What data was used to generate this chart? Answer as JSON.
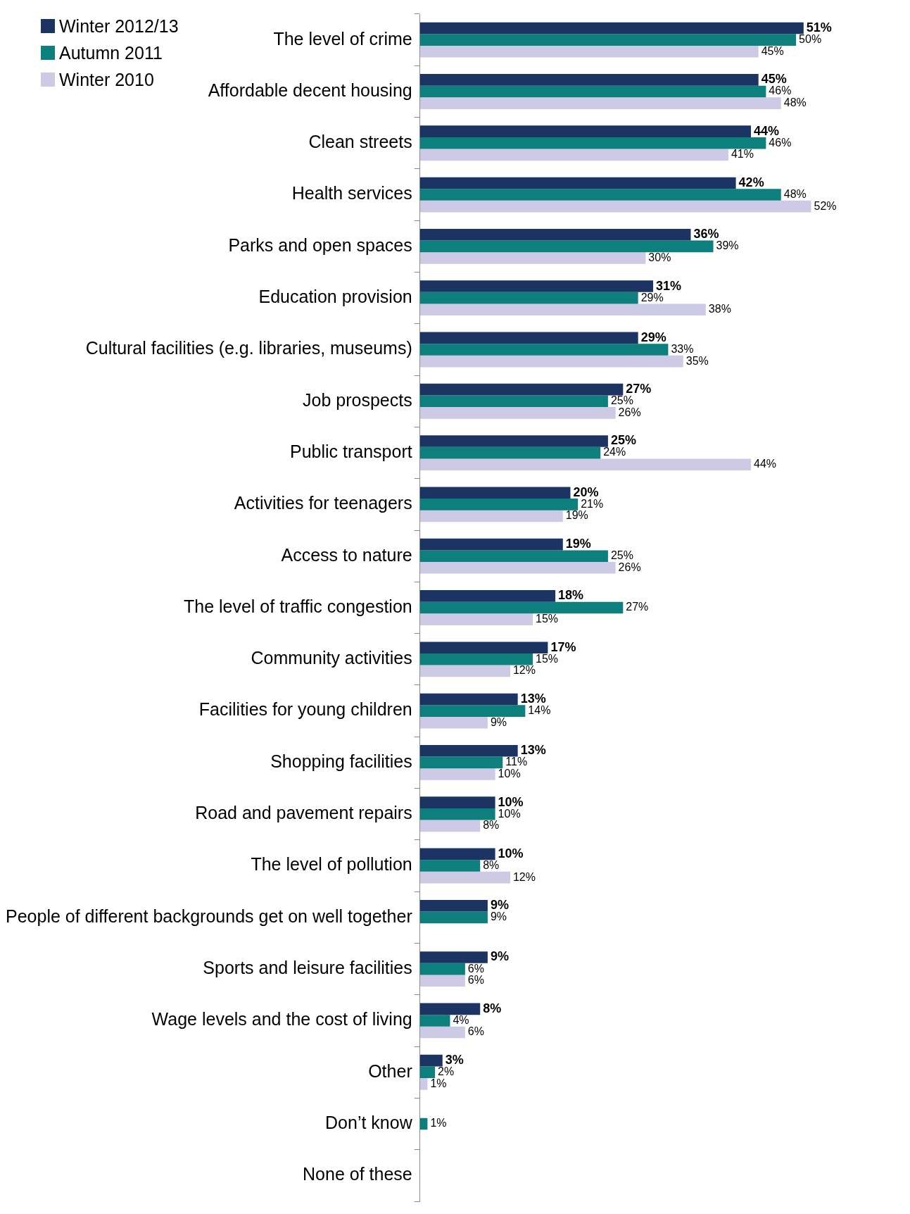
{
  "chart_data": {
    "type": "bar",
    "orientation": "horizontal",
    "legend": "top left",
    "categories": [
      "The level of crime",
      "Affordable decent housing",
      "Clean streets",
      "Health services",
      "Parks and open spaces",
      "Education provision",
      "Cultural facilities (e.g. libraries, museums)",
      "Job prospects",
      "Public transport",
      "Activities for teenagers",
      "Access to nature",
      "The level of traffic congestion",
      "Community activities",
      "Facilities for young children",
      "Shopping facilities",
      "Road and pavement repairs",
      "The level of pollution",
      "People of different backgrounds get on well together",
      "Sports and leisure facilities",
      "Wage levels and the cost of living",
      "Other",
      "Don’t know",
      "None of these"
    ],
    "series": [
      {
        "name": "Winter 2012/13",
        "color": "#1b3461",
        "values": [
          51,
          45,
          44,
          42,
          36,
          31,
          29,
          27,
          25,
          20,
          19,
          18,
          17,
          13,
          13,
          10,
          10,
          9,
          9,
          8,
          3,
          null,
          null
        ],
        "value_labels": [
          "51%",
          "45%",
          "44%",
          "42%",
          "36%",
          "31%",
          "29%",
          "27%",
          "25%",
          "20%",
          "19%",
          "18%",
          "17%",
          "13%",
          "13%",
          "10%",
          "10%",
          "9%",
          "9%",
          "8%",
          "3%",
          null,
          null
        ]
      },
      {
        "name": "Autumn 2011",
        "color": "#0d7f7c",
        "values": [
          50,
          46,
          46,
          48,
          39,
          29,
          33,
          25,
          24,
          21,
          25,
          27,
          15,
          14,
          11,
          10,
          8,
          9,
          6,
          4,
          2,
          1,
          null
        ],
        "value_labels": [
          "50%",
          "46%",
          "46%",
          "48%",
          "39%",
          "29%",
          "33%",
          "25%",
          "24%",
          "21%",
          "25%",
          "27%",
          "15%",
          "14%",
          "11%",
          "10%",
          "8%",
          "9%",
          "6%",
          "4%",
          "2%",
          "1%",
          null
        ]
      },
      {
        "name": "Winter 2010",
        "color": "#cdcae5",
        "values": [
          45,
          48,
          41,
          52,
          30,
          38,
          35,
          26,
          44,
          19,
          26,
          15,
          12,
          9,
          10,
          8,
          12,
          null,
          6,
          6,
          1,
          null,
          null
        ],
        "value_labels": [
          "45%",
          "48%",
          "41%",
          "52%",
          "30%",
          "38%",
          "35%",
          "26%",
          "44%",
          "19%",
          "26%",
          "15%",
          "12%",
          "9%",
          "10%",
          "8%",
          "12%",
          null,
          "6%",
          "6%",
          "1%",
          null,
          null
        ]
      }
    ]
  }
}
